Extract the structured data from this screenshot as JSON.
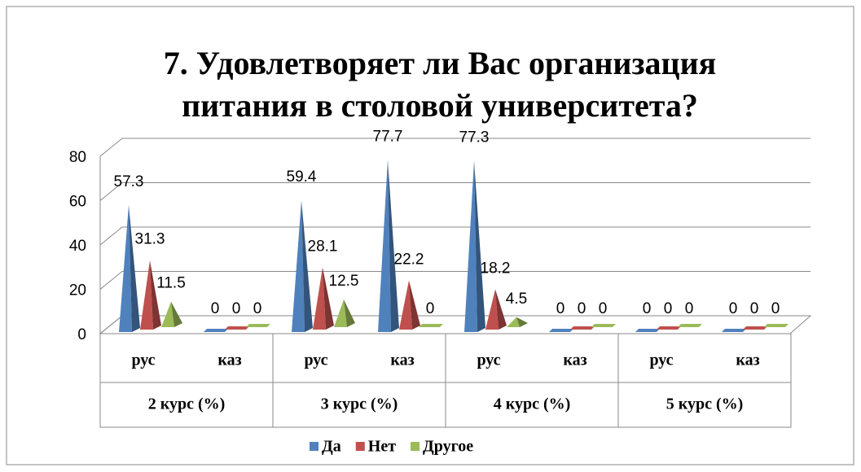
{
  "chart_data": {
    "type": "pyramid3d",
    "title_lines": [
      "7. Удовлетворяет ли Вас организация",
      "питания в столовой университета?"
    ],
    "categories": [
      "рус",
      "каз",
      "рус",
      "каз",
      "рус",
      "каз",
      "рус",
      "каз"
    ],
    "category_groups": [
      "2 курс (%)",
      "3 курс (%)",
      "4 курс (%)",
      "5 курс (%)"
    ],
    "series": [
      {
        "name": "Да",
        "color": "#4f81bd",
        "values": [
          57.3,
          0,
          59.4,
          77.7,
          77.3,
          0,
          0,
          0
        ]
      },
      {
        "name": "Нет",
        "color": "#c0504d",
        "values": [
          31.3,
          0,
          28.1,
          22.2,
          18.2,
          0,
          0,
          0
        ]
      },
      {
        "name": "Другое",
        "color": "#9bbb59",
        "values": [
          11.5,
          0,
          12.5,
          0,
          4.5,
          0,
          0,
          0
        ]
      }
    ],
    "ylim": [
      0,
      80
    ],
    "yticks": [
      0,
      20,
      40,
      60,
      80
    ],
    "grid": true,
    "legend": "bottom"
  }
}
